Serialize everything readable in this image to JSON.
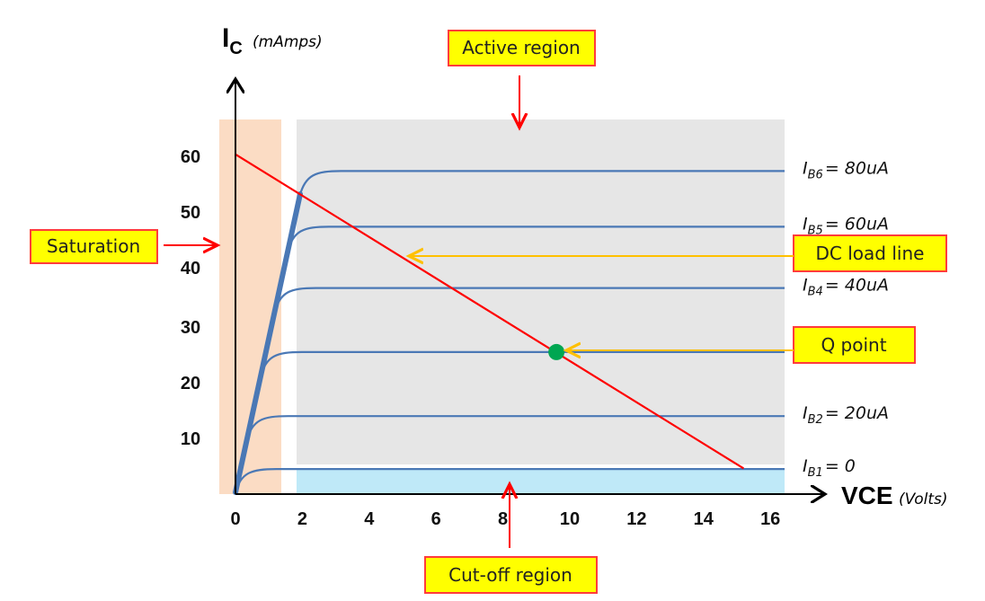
{
  "chart_data": {
    "type": "line",
    "title": "",
    "xlabel": "VCE",
    "xlabel_unit": "(Volts)",
    "ylabel": "I",
    "ylabel_sub": "C",
    "ylabel_unit": "(mAmps)",
    "xlim": [
      0,
      16.5
    ],
    "ylim": [
      0,
      68
    ],
    "x_ticks": [
      "0",
      "2",
      "4",
      "6",
      "8",
      "10",
      "12",
      "14",
      "16"
    ],
    "y_ticks": [
      "10",
      "20",
      "30",
      "40",
      "50",
      "60"
    ],
    "grid": false,
    "series": [
      {
        "name": "IB6 = 80uA",
        "label_main": "I",
        "label_sub": "B6",
        "label_rest": "= 80uA",
        "level": 58
      },
      {
        "name": "IB5 = 60uA",
        "label_main": "I",
        "label_sub": "B5",
        "label_rest": "= 60uA",
        "level": 48
      },
      {
        "name": "IB4 = 40uA",
        "label_main": "I",
        "label_sub": "B4",
        "label_rest": "= 40uA",
        "level": 37
      },
      {
        "name": "",
        "label_main": "",
        "label_sub": "",
        "label_rest": "",
        "level": 25.5
      },
      {
        "name": "IB2 = 20uA",
        "label_main": "I",
        "label_sub": "B2",
        "label_rest": "= 20uA",
        "level": 14
      },
      {
        "name": "IB1 = 0",
        "label_main": "I",
        "label_sub": "B1",
        "label_rest": "= 0",
        "level": 4.5
      }
    ],
    "load_line": {
      "ic_intercept": 61,
      "vce_end": 15.2,
      "color": "#ff0000"
    },
    "q_point": {
      "vce": 9.6,
      "ic": 25.5,
      "color": "#00a651"
    },
    "curve_color": "#4a78b5"
  },
  "annotations": {
    "active_region": "Active region",
    "saturation": "Saturation",
    "dc_load_line": "DC load line",
    "q_point": "Q point",
    "cutoff_region": "Cut-off region"
  },
  "colors": {
    "saturation_fill": "#fbdcc4",
    "active_fill": "#e6e6e6",
    "cutoff_fill": "#bfe9f8",
    "box_fill": "#ffff00",
    "box_border": "#ff3b3b",
    "red_arrow": "#ff0000",
    "yellow_arrow": "#ffc000"
  }
}
